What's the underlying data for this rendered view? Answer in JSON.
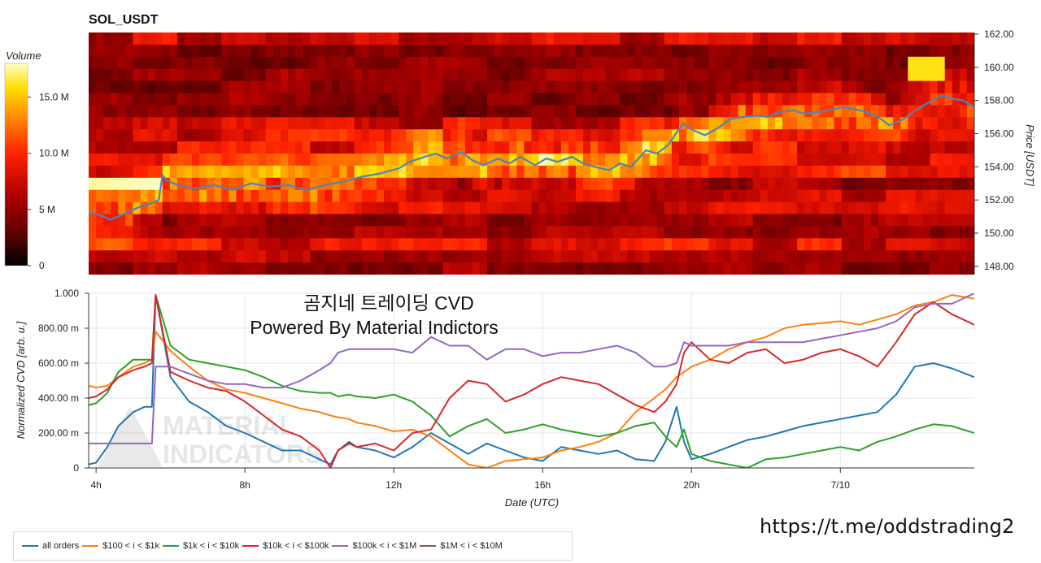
{
  "colors": {
    "series": [
      "#1f77b4",
      "#ff7f0e",
      "#2ca02c",
      "#d62728",
      "#9467bd",
      "#8c564b"
    ],
    "price_line": "#4a86b8"
  },
  "chart_data": [
    {
      "type": "heatmap",
      "title": "SOL_USDT",
      "ylabel": "Price [USDT]",
      "ylim": [
        147.5,
        162.1
      ],
      "y_ticks": [
        "162.00",
        "160.00",
        "158.00",
        "156.00",
        "154.00",
        "152.00",
        "150.00",
        "148.00"
      ],
      "y_tick_values": [
        162,
        160,
        158,
        156,
        154,
        152,
        150,
        148
      ],
      "colorbar": {
        "label": "Volume",
        "range": [
          0,
          18
        ],
        "ticks": [
          "0",
          "5 M",
          "10.0 M",
          "15.0 M"
        ],
        "tick_values": [
          0,
          5,
          10,
          15
        ],
        "colorscale": [
          "#000000",
          "#5a0000",
          "#b00000",
          "#ff2000",
          "#ff8000",
          "#ffe000",
          "#ffffc8"
        ]
      },
      "price_line": {
        "x_hours": [
          3.6,
          4.0,
          4.2,
          4.5,
          4.8,
          5.0,
          5.3,
          5.5,
          5.6,
          5.7,
          6.0,
          6.5,
          7.0,
          7.5,
          8.0,
          8.5,
          9.0,
          9.5,
          10.0,
          10.5,
          11.0,
          11.5,
          12.0,
          12.3,
          12.7,
          13.0,
          13.3,
          13.7,
          14.0,
          14.3,
          14.7,
          15.0,
          15.3,
          15.7,
          16.0,
          16.3,
          16.7,
          17.0,
          17.3,
          17.7,
          18.0,
          18.3,
          18.7,
          19.0,
          19.3,
          19.7,
          20.0,
          20.3,
          20.7,
          21.0,
          21.3,
          21.7,
          22.0,
          22.3,
          22.7,
          23.0,
          23.3,
          23.7,
          24.0,
          24.3,
          24.7,
          25.0,
          25.3,
          25.7,
          26.0,
          26.3,
          26.7,
          27.0,
          27.3,
          27.6
        ],
        "price": [
          151.3,
          151.0,
          150.8,
          151.1,
          151.4,
          151.6,
          151.8,
          152.0,
          153.5,
          153.2,
          152.9,
          152.7,
          152.9,
          152.6,
          153.0,
          152.8,
          152.9,
          152.6,
          152.9,
          153.1,
          153.4,
          153.6,
          153.9,
          154.3,
          154.6,
          154.8,
          154.5,
          154.9,
          154.4,
          154.1,
          154.5,
          154.2,
          154.6,
          154.1,
          154.5,
          154.3,
          154.6,
          154.2,
          154.0,
          153.8,
          154.2,
          154.0,
          155.0,
          154.8,
          155.3,
          156.6,
          156.2,
          155.9,
          156.4,
          156.9,
          157.0,
          157.1,
          157.0,
          157.3,
          157.4,
          157.2,
          157.3,
          157.4,
          157.6,
          157.5,
          157.3,
          157.0,
          156.5,
          156.9,
          157.4,
          157.8,
          158.3,
          158.1,
          158.0,
          157.6
        ]
      }
    },
    {
      "type": "line",
      "xlabel": "Date (UTC)",
      "ylabel": "Normalized CVD [arb. u.]",
      "x_tick_labels": [
        "4h",
        "8h",
        "12h",
        "16h",
        "20h",
        "7/10"
      ],
      "x_tick_hours": [
        4,
        8,
        12,
        16,
        20,
        24
      ],
      "xlim_hours": [
        3.8,
        27.6
      ],
      "y_tick_labels": [
        "1.000",
        "800.00 m",
        "600.00 m",
        "400.00 m",
        "200.00 m",
        "0"
      ],
      "y_tick_values": [
        1.0,
        0.8,
        0.6,
        0.4,
        0.2,
        0.0
      ],
      "ylim": [
        0,
        1.0
      ],
      "grid": true,
      "legend_position": "bottom-left",
      "x_hours": [
        3.8,
        4.0,
        4.3,
        4.6,
        5.0,
        5.3,
        5.5,
        5.6,
        6.0,
        6.5,
        7.0,
        7.5,
        8.0,
        8.5,
        9.0,
        9.5,
        10.0,
        10.3,
        10.5,
        10.8,
        11.0,
        11.5,
        12.0,
        12.5,
        13.0,
        13.5,
        14.0,
        14.5,
        15.0,
        15.5,
        16.0,
        16.5,
        17.0,
        17.5,
        18.0,
        18.5,
        19.0,
        19.3,
        19.6,
        19.8,
        20.0,
        20.5,
        21.0,
        21.5,
        22.0,
        22.5,
        23.0,
        23.5,
        24.0,
        24.5,
        25.0,
        25.5,
        26.0,
        26.5,
        27.0,
        27.6
      ],
      "series": [
        {
          "name": "all orders",
          "values": [
            0.02,
            0.03,
            0.12,
            0.24,
            0.32,
            0.35,
            0.35,
            0.99,
            0.52,
            0.38,
            0.32,
            0.24,
            0.2,
            0.15,
            0.1,
            0.1,
            0.05,
            0.02,
            0.1,
            0.15,
            0.12,
            0.1,
            0.06,
            0.12,
            0.2,
            0.14,
            0.08,
            0.14,
            0.1,
            0.06,
            0.04,
            0.12,
            0.1,
            0.08,
            0.1,
            0.05,
            0.04,
            0.15,
            0.35,
            0.15,
            0.05,
            0.08,
            0.12,
            0.16,
            0.18,
            0.21,
            0.24,
            0.26,
            0.28,
            0.3,
            0.32,
            0.42,
            0.58,
            0.6,
            0.57,
            0.52
          ]
        },
        {
          "name": "$100 < i < $1k",
          "values": [
            0.47,
            0.46,
            0.47,
            0.52,
            0.58,
            0.6,
            0.62,
            0.78,
            0.67,
            0.58,
            0.5,
            0.45,
            0.43,
            0.4,
            0.37,
            0.34,
            0.32,
            0.3,
            0.29,
            0.28,
            0.26,
            0.24,
            0.21,
            0.22,
            0.18,
            0.1,
            0.02,
            0.0,
            0.04,
            0.05,
            0.06,
            0.1,
            0.12,
            0.15,
            0.2,
            0.32,
            0.4,
            0.45,
            0.52,
            0.55,
            0.58,
            0.62,
            0.68,
            0.72,
            0.75,
            0.8,
            0.82,
            0.83,
            0.84,
            0.82,
            0.85,
            0.88,
            0.93,
            0.95,
            0.99,
            0.97
          ]
        },
        {
          "name": "$1k < i < $10k",
          "values": [
            0.36,
            0.37,
            0.43,
            0.55,
            0.62,
            0.62,
            0.62,
            0.99,
            0.7,
            0.62,
            0.6,
            0.58,
            0.56,
            0.52,
            0.47,
            0.44,
            0.43,
            0.43,
            0.41,
            0.42,
            0.41,
            0.4,
            0.42,
            0.38,
            0.3,
            0.18,
            0.24,
            0.28,
            0.2,
            0.22,
            0.25,
            0.22,
            0.2,
            0.18,
            0.2,
            0.24,
            0.26,
            0.18,
            0.12,
            0.22,
            0.08,
            0.04,
            0.02,
            0.0,
            0.05,
            0.06,
            0.08,
            0.1,
            0.12,
            0.1,
            0.15,
            0.18,
            0.22,
            0.25,
            0.24,
            0.2
          ]
        },
        {
          "name": "$10k < i < $100k",
          "values": [
            0.4,
            0.41,
            0.45,
            0.52,
            0.56,
            0.58,
            0.6,
            0.99,
            0.55,
            0.5,
            0.46,
            0.44,
            0.38,
            0.3,
            0.22,
            0.18,
            0.1,
            0.0,
            0.1,
            0.14,
            0.12,
            0.14,
            0.1,
            0.2,
            0.22,
            0.4,
            0.5,
            0.48,
            0.38,
            0.42,
            0.48,
            0.52,
            0.5,
            0.48,
            0.42,
            0.36,
            0.32,
            0.38,
            0.48,
            0.66,
            0.72,
            0.62,
            0.6,
            0.66,
            0.68,
            0.6,
            0.62,
            0.66,
            0.68,
            0.64,
            0.58,
            0.72,
            0.88,
            0.95,
            0.88,
            0.82
          ]
        },
        {
          "name": "$100k < i < $1M",
          "values": [
            0.14,
            0.14,
            0.14,
            0.14,
            0.14,
            0.14,
            0.14,
            0.58,
            0.58,
            0.54,
            0.5,
            0.48,
            0.48,
            0.46,
            0.46,
            0.5,
            0.56,
            0.6,
            0.66,
            0.68,
            0.68,
            0.68,
            0.68,
            0.66,
            0.75,
            0.7,
            0.7,
            0.62,
            0.68,
            0.68,
            0.64,
            0.66,
            0.66,
            0.68,
            0.7,
            0.66,
            0.58,
            0.58,
            0.6,
            0.72,
            0.7,
            0.7,
            0.7,
            0.72,
            0.72,
            0.72,
            0.72,
            0.74,
            0.76,
            0.78,
            0.8,
            0.84,
            0.92,
            0.94,
            0.94,
            1.0
          ]
        }
      ],
      "empty_series": [
        {
          "name": "$1M < i < $10M"
        }
      ]
    }
  ],
  "watermark": {
    "title": "곰지네 트레이딩 CVD",
    "subtitle": "Powered By Material Indictors"
  },
  "logo_text": [
    "MATERIAL",
    "INDICATORS"
  ],
  "link": "https://t.me/oddstrading2",
  "legend": [
    {
      "label": "all orders",
      "color": "#1f77b4"
    },
    {
      "label": "$100 < i < $1k",
      "color": "#ff7f0e"
    },
    {
      "label": "$1k < i < $10k",
      "color": "#2ca02c"
    },
    {
      "label": "$10k < i < $100k",
      "color": "#d62728"
    },
    {
      "label": "$100k < i < $1M",
      "color": "#9467bd"
    },
    {
      "label": "$1M < i < $10M",
      "color": "#8c564b"
    }
  ]
}
